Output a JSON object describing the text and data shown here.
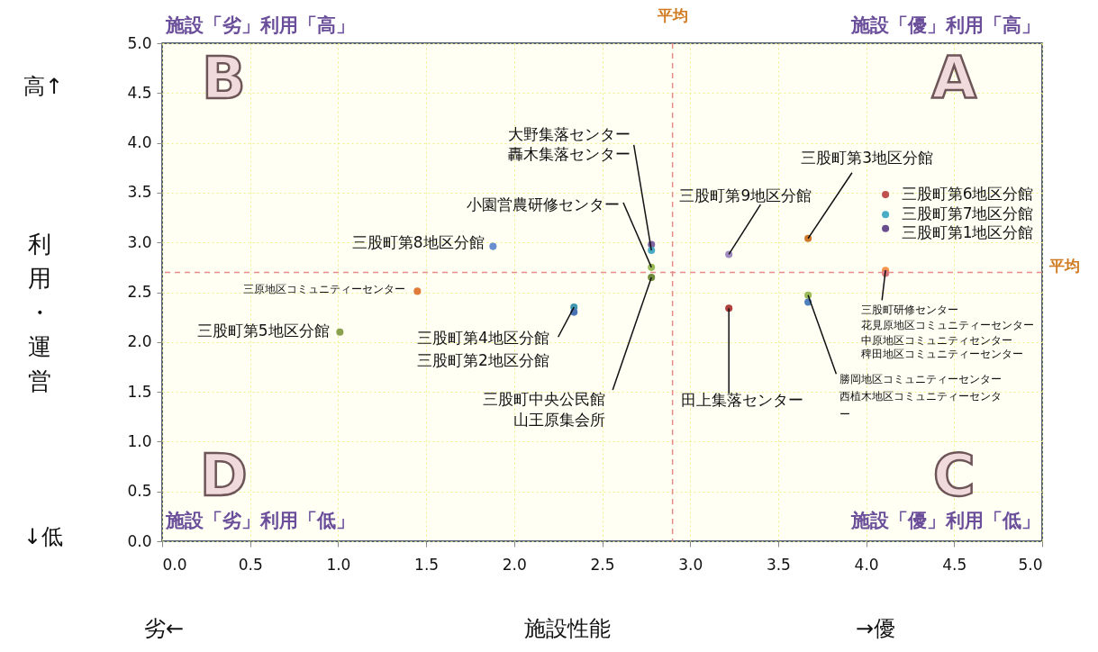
{
  "chart_data": {
    "type": "scatter",
    "xlabel": "施設性能",
    "ylabel": "利用・運営",
    "x": [
      1.88,
      1.45,
      1.01,
      2.34,
      2.34,
      2.78,
      2.78,
      2.78,
      2.78,
      3.22,
      3.67,
      4.11,
      4.11,
      4.11,
      4.11,
      4.11,
      3.22,
      3.67,
      3.67
    ],
    "values": [
      2.96,
      2.51,
      2.1,
      2.35,
      2.3,
      2.98,
      2.92,
      2.75,
      2.65,
      2.88,
      3.04,
      3.48,
      3.28,
      3.14,
      2.72,
      2.69,
      2.34,
      2.47,
      2.4
    ],
    "colors": [
      "#6a8fd0",
      "#e07b39",
      "#8aa14e",
      "#3f98b0",
      "#4a73b5",
      "#8064a2",
      "#4bacc6",
      "#9bbb59",
      "#6f8a3a",
      "#a08cc0",
      "#d0792c",
      "#c0504d",
      "#4bacc6",
      "#6a4f8f",
      "#f79646",
      "#d9787a",
      "#b0403c",
      "#9bbb59",
      "#4f81bd"
    ],
    "xlim": [
      0,
      5
    ],
    "ylim": [
      0,
      5
    ],
    "xticks": [
      {
        "value": 0,
        "label": "0.0"
      },
      {
        "value": 0.5,
        "label": "0.5"
      },
      {
        "value": 1,
        "label": "1.0"
      },
      {
        "value": 1.5,
        "label": "1.5"
      },
      {
        "value": 2,
        "label": "2.0"
      },
      {
        "value": 2.5,
        "label": "2.5"
      },
      {
        "value": 3,
        "label": "3.0"
      },
      {
        "value": 3.5,
        "label": "3.5"
      },
      {
        "value": 4,
        "label": "4.0"
      },
      {
        "value": 4.5,
        "label": "4.5"
      },
      {
        "value": 5,
        "label": "5.0"
      }
    ],
    "yticks": [
      {
        "value": 0,
        "label": "0.0"
      },
      {
        "value": 0.5,
        "label": "0.5"
      },
      {
        "value": 1,
        "label": "1.0"
      },
      {
        "value": 1.5,
        "label": "1.5"
      },
      {
        "value": 2,
        "label": "2.0"
      },
      {
        "value": 2.5,
        "label": "2.5"
      },
      {
        "value": 3,
        "label": "3.0"
      },
      {
        "value": 3.5,
        "label": "3.5"
      },
      {
        "value": 4,
        "label": "4.0"
      },
      {
        "value": 4.5,
        "label": "4.5"
      },
      {
        "value": 5,
        "label": "5.0"
      }
    ],
    "grid": true,
    "marker": "circle",
    "ref_lines": [
      {
        "axis": "x",
        "value": 2.9,
        "label": "平均",
        "color": "#e88a8a",
        "line_style": "dashed"
      },
      {
        "axis": "y",
        "value": 2.7,
        "label": "平均",
        "color": "#e88a8a",
        "line_style": "dashed"
      }
    ],
    "annotations": [
      {
        "text": "大野集落センター",
        "x": 2.78,
        "y": 2.98
      },
      {
        "text": "轟木集落センター",
        "x": 2.78,
        "y": 2.92
      },
      {
        "text": "小園営農研修センター",
        "x": 2.78,
        "y": 2.75
      },
      {
        "text": "三股町第8地区分館",
        "x": 1.88,
        "y": 2.96
      },
      {
        "text": "三原地区コミュニティーセンター",
        "x": 1.45,
        "y": 2.51
      },
      {
        "text": "三股町第5地区分館",
        "x": 1.01,
        "y": 2.1
      },
      {
        "text": "三股町第4地区分館",
        "x": 2.34,
        "y": 2.35
      },
      {
        "text": "三股町第2地区分館",
        "x": 2.34,
        "y": 2.3
      },
      {
        "text": "三股町中央公民館",
        "x": 2.78,
        "y": 2.65
      },
      "山王原集会所",
      {
        "text": "三股町第9地区分館",
        "x": 3.22,
        "y": 2.88
      },
      {
        "text": "三股町第3地区分館",
        "x": 3.67,
        "y": 3.04
      },
      {
        "text": "三股町第6地区分館",
        "x": 4.11,
        "y": 3.48
      },
      {
        "text": "三股町第7地区分館",
        "x": 4.11,
        "y": 3.28
      },
      {
        "text": "三股町第1地区分館",
        "x": 4.11,
        "y": 3.14
      },
      {
        "text": "三股町研修センター",
        "x": 4.11,
        "y": 2.72
      },
      "花見原地区コミュニティーセンター",
      "中原地区コミュニティセンター",
      "稗田地区コミュニティーセンター",
      {
        "text": "田上集落センター",
        "x": 3.22,
        "y": 2.34
      },
      {
        "text": "勝岡地区コミュニティーセンター",
        "x": 3.67,
        "y": 2.47
      },
      "西植木地区コミュニティーセンター",
      "A",
      "B",
      "C",
      "D",
      "施設「優」利用「高」",
      "施設「劣」利用「高」",
      "施設「優」利用「低」",
      "施設「劣」利用「低」",
      "劣←",
      "→優",
      "高↑",
      "↓低"
    ]
  }
}
